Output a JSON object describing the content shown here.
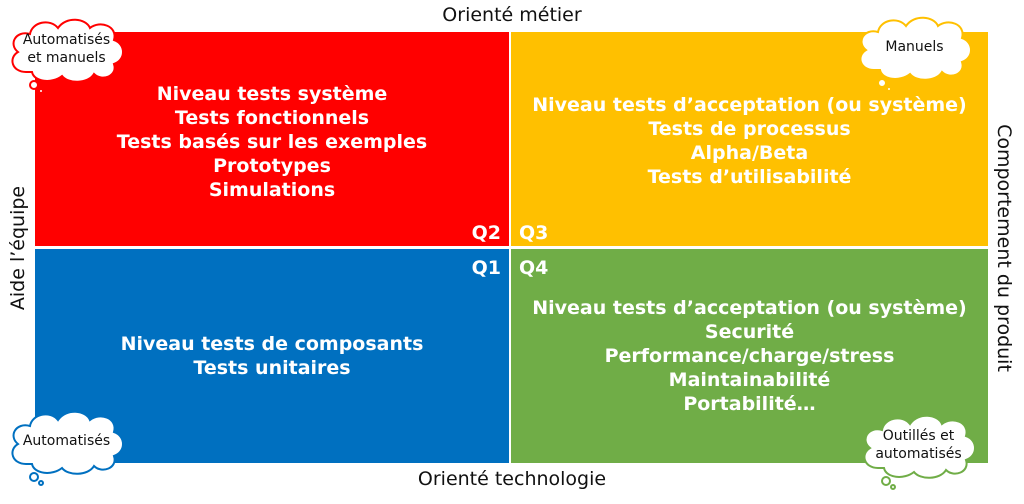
{
  "axes": {
    "top": "Orienté métier",
    "bottom": "Orienté technologie",
    "left": "Aide l’équipe",
    "right": "Comportement du produit"
  },
  "quadrants": {
    "top_left": {
      "label": "Q2",
      "color": "#FF0000",
      "lines": [
        "Niveau tests système",
        "Tests fonctionnels",
        "Tests basés sur les exemples",
        "Prototypes",
        "Simulations"
      ]
    },
    "top_right": {
      "label": "Q3",
      "color": "#FFC000",
      "lines": [
        "Niveau tests d’acceptation (ou système)",
        "Tests de processus",
        "Alpha/Beta",
        "Tests d’utilisabilité"
      ]
    },
    "bottom_left": {
      "label": "Q1",
      "color": "#0070C0",
      "lines": [
        "Niveau tests de composants",
        "Tests unitaires"
      ]
    },
    "bottom_right": {
      "label": "Q4",
      "color": "#70AD47",
      "lines": [
        "Niveau tests d’acceptation (ou système)",
        "Securité",
        "Performance/charge/stress",
        "Maintainabilité",
        "Portabilité…"
      ]
    }
  },
  "clouds": {
    "top_left": {
      "lines": [
        "Automatisés",
        "et manuels"
      ],
      "color": "#FF0000"
    },
    "top_right": {
      "lines": [
        "Manuels"
      ],
      "color": "#FFC000"
    },
    "bottom_left": {
      "lines": [
        "Automatisés"
      ],
      "color": "#0070C0"
    },
    "bottom_right": {
      "lines": [
        "Outillés et",
        "automatisés"
      ],
      "color": "#70AD47"
    }
  }
}
